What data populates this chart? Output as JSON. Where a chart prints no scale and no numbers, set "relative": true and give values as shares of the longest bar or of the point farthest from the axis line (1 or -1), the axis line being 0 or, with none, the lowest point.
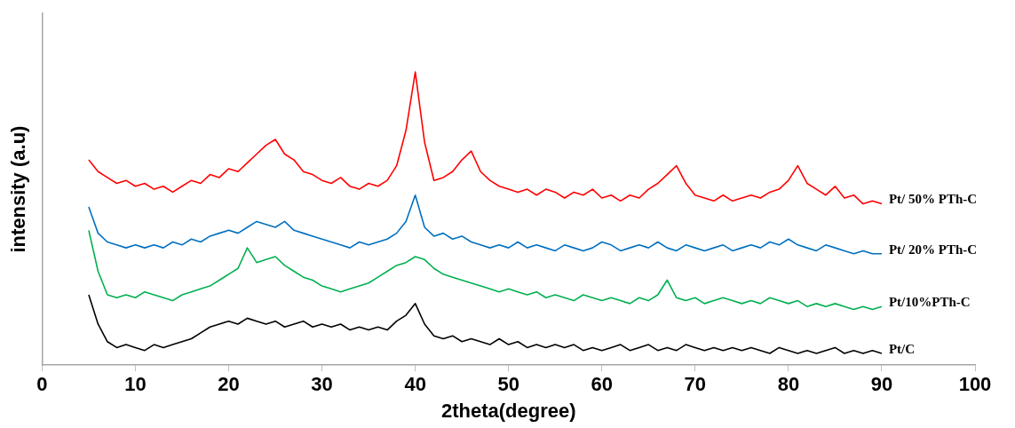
{
  "chart_data": {
    "type": "line",
    "relative": true,
    "xlabel": "2theta(degree)",
    "ylabel": "intensity (a.u)",
    "xlim": [
      0,
      100
    ],
    "xticks": [
      0,
      10,
      20,
      30,
      40,
      50,
      60,
      70,
      80,
      90,
      100
    ],
    "grid": false,
    "legend": false,
    "marker": "none",
    "line_style": "solid",
    "x": [
      5,
      6,
      7,
      8,
      9,
      10,
      11,
      12,
      13,
      14,
      15,
      16,
      17,
      18,
      19,
      20,
      21,
      22,
      23,
      24,
      25,
      26,
      27,
      28,
      29,
      30,
      31,
      32,
      33,
      34,
      35,
      36,
      37,
      38,
      39,
      40,
      41,
      42,
      43,
      44,
      45,
      46,
      47,
      48,
      49,
      50,
      51,
      52,
      53,
      54,
      55,
      56,
      57,
      58,
      59,
      60,
      61,
      62,
      63,
      64,
      65,
      66,
      67,
      68,
      69,
      70,
      71,
      72,
      73,
      74,
      75,
      76,
      77,
      78,
      79,
      80,
      81,
      82,
      83,
      84,
      85,
      86,
      87,
      88,
      89,
      90
    ],
    "series": [
      {
        "name": "Pt/ 50% PTh-C",
        "color": "#ff0000",
        "values": [
          0.7,
          0.66,
          0.64,
          0.62,
          0.63,
          0.61,
          0.62,
          0.6,
          0.61,
          0.59,
          0.61,
          0.63,
          0.62,
          0.65,
          0.64,
          0.67,
          0.66,
          0.69,
          0.72,
          0.75,
          0.77,
          0.72,
          0.7,
          0.66,
          0.65,
          0.63,
          0.62,
          0.64,
          0.61,
          0.6,
          0.62,
          0.61,
          0.63,
          0.68,
          0.8,
          1.0,
          0.76,
          0.63,
          0.64,
          0.66,
          0.7,
          0.73,
          0.66,
          0.63,
          0.61,
          0.6,
          0.59,
          0.6,
          0.58,
          0.6,
          0.59,
          0.57,
          0.59,
          0.58,
          0.6,
          0.57,
          0.58,
          0.56,
          0.58,
          0.57,
          0.6,
          0.62,
          0.65,
          0.68,
          0.62,
          0.58,
          0.57,
          0.56,
          0.58,
          0.56,
          0.57,
          0.58,
          0.57,
          0.59,
          0.6,
          0.63,
          0.68,
          0.62,
          0.6,
          0.58,
          0.61,
          0.57,
          0.58,
          0.55,
          0.56,
          0.55
        ]
      },
      {
        "name": "Pt/ 20% PTh-C",
        "color": "#0070c0",
        "values": [
          0.54,
          0.45,
          0.42,
          0.41,
          0.4,
          0.41,
          0.4,
          0.41,
          0.4,
          0.42,
          0.41,
          0.43,
          0.42,
          0.44,
          0.45,
          0.46,
          0.45,
          0.47,
          0.49,
          0.48,
          0.47,
          0.49,
          0.46,
          0.45,
          0.44,
          0.43,
          0.42,
          0.41,
          0.4,
          0.42,
          0.41,
          0.42,
          0.43,
          0.45,
          0.49,
          0.58,
          0.47,
          0.44,
          0.45,
          0.43,
          0.44,
          0.42,
          0.41,
          0.4,
          0.41,
          0.4,
          0.42,
          0.4,
          0.41,
          0.4,
          0.39,
          0.41,
          0.4,
          0.39,
          0.4,
          0.42,
          0.41,
          0.39,
          0.4,
          0.41,
          0.4,
          0.42,
          0.4,
          0.39,
          0.41,
          0.4,
          0.39,
          0.4,
          0.41,
          0.39,
          0.4,
          0.41,
          0.4,
          0.42,
          0.41,
          0.43,
          0.41,
          0.4,
          0.39,
          0.41,
          0.4,
          0.39,
          0.38,
          0.39,
          0.38,
          0.38
        ]
      },
      {
        "name": "Pt/10%PTh-C",
        "color": "#00b050",
        "values": [
          0.46,
          0.32,
          0.24,
          0.23,
          0.24,
          0.23,
          0.25,
          0.24,
          0.23,
          0.22,
          0.24,
          0.25,
          0.26,
          0.27,
          0.29,
          0.31,
          0.33,
          0.4,
          0.35,
          0.36,
          0.37,
          0.34,
          0.32,
          0.3,
          0.29,
          0.27,
          0.26,
          0.25,
          0.26,
          0.27,
          0.28,
          0.3,
          0.32,
          0.34,
          0.35,
          0.37,
          0.36,
          0.33,
          0.31,
          0.3,
          0.29,
          0.28,
          0.27,
          0.26,
          0.25,
          0.26,
          0.25,
          0.24,
          0.25,
          0.23,
          0.24,
          0.23,
          0.22,
          0.24,
          0.23,
          0.22,
          0.23,
          0.22,
          0.21,
          0.23,
          0.22,
          0.24,
          0.29,
          0.23,
          0.22,
          0.23,
          0.21,
          0.22,
          0.23,
          0.22,
          0.21,
          0.22,
          0.21,
          0.23,
          0.22,
          0.21,
          0.22,
          0.2,
          0.21,
          0.2,
          0.21,
          0.2,
          0.19,
          0.2,
          0.19,
          0.2
        ]
      },
      {
        "name": "Pt/C",
        "color": "#000000",
        "values": [
          0.24,
          0.14,
          0.08,
          0.06,
          0.07,
          0.06,
          0.05,
          0.07,
          0.06,
          0.07,
          0.08,
          0.09,
          0.11,
          0.13,
          0.14,
          0.15,
          0.14,
          0.16,
          0.15,
          0.14,
          0.15,
          0.13,
          0.14,
          0.15,
          0.13,
          0.14,
          0.13,
          0.14,
          0.12,
          0.13,
          0.12,
          0.13,
          0.12,
          0.15,
          0.17,
          0.21,
          0.14,
          0.1,
          0.09,
          0.1,
          0.08,
          0.09,
          0.08,
          0.07,
          0.09,
          0.07,
          0.08,
          0.06,
          0.07,
          0.06,
          0.07,
          0.06,
          0.07,
          0.05,
          0.06,
          0.05,
          0.06,
          0.07,
          0.05,
          0.06,
          0.07,
          0.05,
          0.06,
          0.05,
          0.07,
          0.06,
          0.05,
          0.06,
          0.05,
          0.06,
          0.05,
          0.06,
          0.05,
          0.04,
          0.06,
          0.05,
          0.04,
          0.05,
          0.04,
          0.05,
          0.06,
          0.04,
          0.05,
          0.04,
          0.05,
          0.04
        ]
      }
    ]
  }
}
